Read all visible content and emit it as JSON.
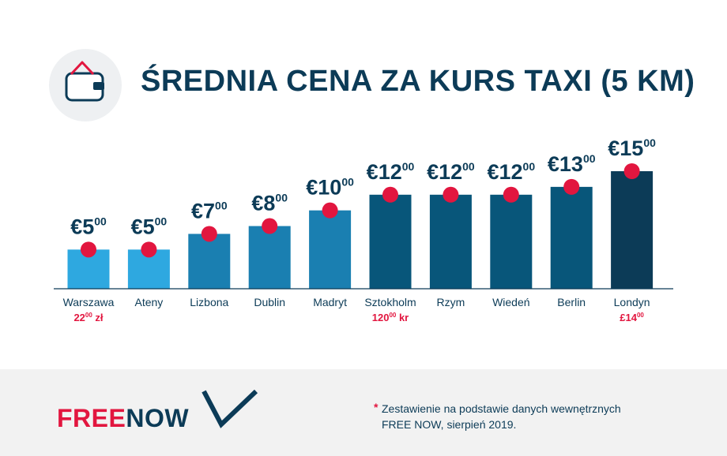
{
  "header": {
    "title": "ŚREDNIA CENA ZA KURS TAXI (5 KM)",
    "icon": "wallet-receipt-icon"
  },
  "chart_data": {
    "type": "bar",
    "categories": [
      "Warszawa",
      "Ateny",
      "Lizbona",
      "Dublin",
      "Madryt",
      "Sztokholm",
      "Rzym",
      "Wiedeń",
      "Berlin",
      "Londyn"
    ],
    "values": [
      5,
      5,
      7,
      8,
      10,
      12,
      12,
      12,
      13,
      15
    ],
    "value_labels": [
      {
        "main": "€5",
        "sup": "00"
      },
      {
        "main": "€5",
        "sup": "00"
      },
      {
        "main": "€7",
        "sup": "00"
      },
      {
        "main": "€8",
        "sup": "00"
      },
      {
        "main": "€10",
        "sup": "00"
      },
      {
        "main": "€12",
        "sup": "00"
      },
      {
        "main": "€12",
        "sup": "00"
      },
      {
        "main": "€12",
        "sup": "00"
      },
      {
        "main": "€13",
        "sup": "00"
      },
      {
        "main": "€15",
        "sup": "00"
      }
    ],
    "local_prices": [
      {
        "main": "22",
        "sup": "00",
        "suffix": " zł"
      },
      null,
      null,
      null,
      null,
      {
        "main": "120",
        "sup": "00",
        "suffix": " kr"
      },
      null,
      null,
      null,
      {
        "main": "£14",
        "sup": "00",
        "suffix": ""
      }
    ],
    "bar_colors": [
      "#2ea8e0",
      "#2ea8e0",
      "#1a7fb1",
      "#1a7fb1",
      "#1a7fb1",
      "#08567a",
      "#08567a",
      "#08567a",
      "#08567a",
      "#0c3b57"
    ],
    "marker_color": "#e2163f",
    "label_color": "#0c3b57",
    "local_price_color": "#e2163f",
    "ylim": [
      0,
      15
    ],
    "grid": false
  },
  "footer": {
    "logo_free": "FREE",
    "logo_now": "NOW",
    "footnote_star": "*",
    "footnote_line1": "Zestawienie na podstawie danych wewnętrznych",
    "footnote_line2": "FREE NOW, sierpień 2019."
  },
  "colors": {
    "brand_red": "#e2163f",
    "brand_navy": "#0c3b57"
  }
}
